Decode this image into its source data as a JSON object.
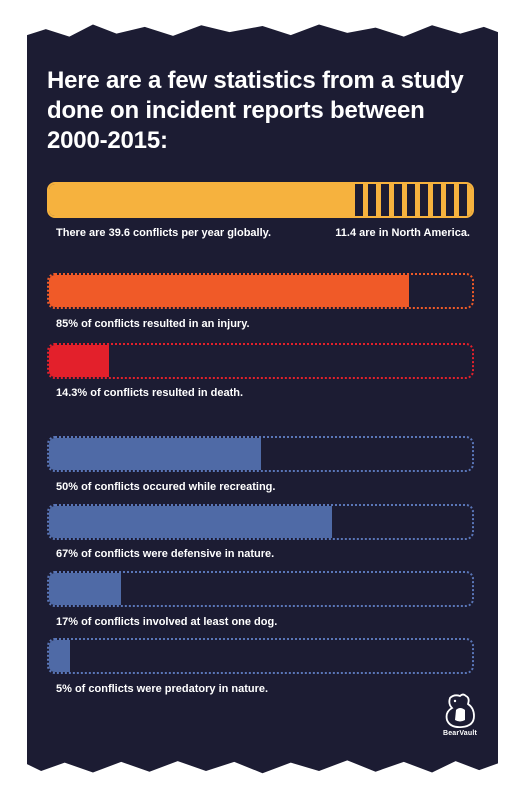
{
  "title": "Here are a few statistics from a study done on incident reports between 2000-2015:",
  "global": {
    "left_label": "There are 39.6 conflicts per year globally.",
    "right_label": "11.4 are in North America.",
    "global_value": 39.6,
    "north_america_value": 11.4,
    "color": "#f6b23e"
  },
  "stats": [
    {
      "label": "85% of conflicts resulted in an injury.",
      "percent": 85,
      "color": "#f05a28",
      "outline": "#f05a28"
    },
    {
      "label": "14.3% of conflicts resulted in death.",
      "percent": 14.3,
      "color": "#e3202b",
      "outline": "#e3202b"
    },
    {
      "label": "50% of conflicts occured while recreating.",
      "percent": 50,
      "color": "#4f6aa6",
      "outline": "#5a76b8"
    },
    {
      "label": "67% of conflicts were defensive in nature.",
      "percent": 67,
      "color": "#4f6aa6",
      "outline": "#5a76b8"
    },
    {
      "label": "17% of conflicts involved at least one dog.",
      "percent": 17,
      "color": "#4f6aa6",
      "outline": "#5a76b8"
    },
    {
      "label": "5% of conflicts were predatory in nature.",
      "percent": 5,
      "color": "#4f6aa6",
      "outline": "#5a76b8"
    }
  ],
  "logo": {
    "text": "BearVault",
    "icon": "bear-icon"
  }
}
